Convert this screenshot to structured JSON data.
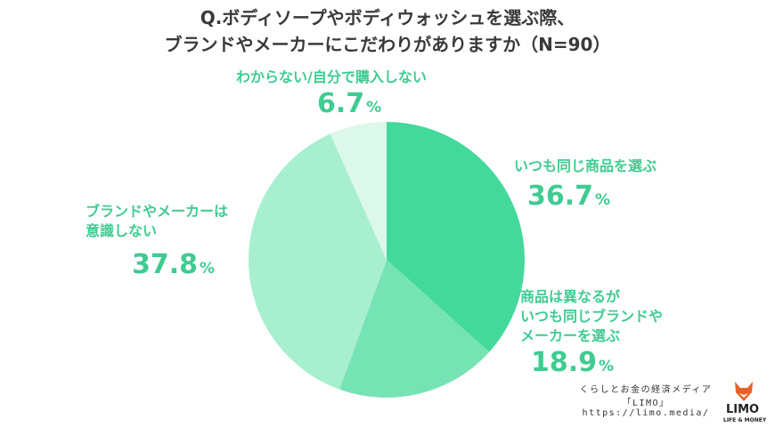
{
  "chart_data": {
    "type": "pie",
    "title": "Q.ボディソープやボディウォッシュを選ぶ際、",
    "subtitle": "ブランドやメーカーにこだわりがありますか（N=90）",
    "unit": "%",
    "slices": [
      {
        "label": "いつも同じ商品を選ぶ",
        "value": 36.7,
        "color": "#43d99b"
      },
      {
        "label": "商品は異なるがいつも同じブランドやメーカーを選ぶ",
        "value": 18.9,
        "color": "#76e3b4"
      },
      {
        "label": "ブランドやメーカーは意識しない",
        "value": 37.8,
        "color": "#a7efcf"
      },
      {
        "label": "わからない/自分で購入しない",
        "value": 6.7,
        "color": "#dcf8ea"
      }
    ]
  },
  "labels": {
    "s1_line1": "いつも同じ商品を選ぶ",
    "s1_value": "36.7",
    "s2_line1": "商品は異なるが",
    "s2_line2": "いつも同じブランドや",
    "s2_line3": "メーカーを選ぶ",
    "s2_value": "18.9",
    "s3_line1": "ブランドやメーカーは",
    "s3_line2": "意識しない",
    "s3_value": "37.8",
    "s4_line1": "わからない/自分で購入しない",
    "s4_value": "6.7",
    "unit": "%"
  },
  "credit": {
    "line1": "くらしとお金の経済メディア",
    "line2": "「LIMO」",
    "line3": "https://limo.media/"
  },
  "logo": {
    "name": "LIMO",
    "tagline": "LIFE & MONEY",
    "icon": "fox-icon",
    "color": "#e8612c"
  }
}
